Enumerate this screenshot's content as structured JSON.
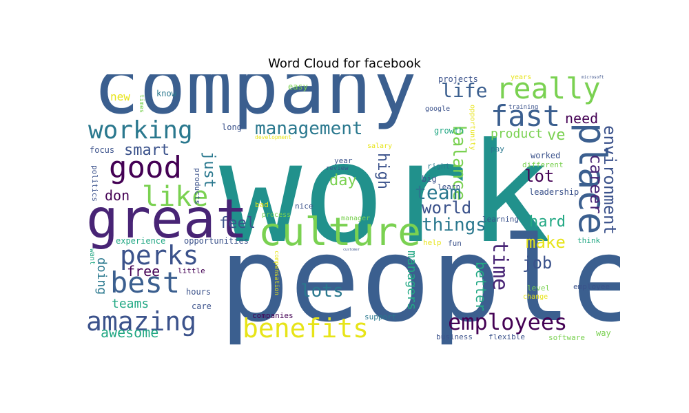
{
  "chart_data": {
    "type": "wordcloud",
    "title": "Word Cloud for facebook",
    "colormap": "viridis",
    "words": [
      {
        "text": "work",
        "size": 200,
        "color": "#21918c"
      },
      {
        "text": "people",
        "size": 170,
        "color": "#3b5f8f"
      },
      {
        "text": "company",
        "size": 112,
        "color": "#3b5f8f"
      },
      {
        "text": "great",
        "size": 78,
        "color": "#482475"
      },
      {
        "text": "culture",
        "size": 56,
        "color": "#7ad151"
      },
      {
        "text": "place",
        "size": 54,
        "color": "#3b5f8f"
      },
      {
        "text": "really",
        "size": 42,
        "color": "#7ad151"
      },
      {
        "text": "fast",
        "size": 42,
        "color": "#3b5f8f"
      },
      {
        "text": "best",
        "size": 42,
        "color": "#3b5f8f"
      },
      {
        "text": "amazing",
        "size": 38,
        "color": "#3b528b"
      },
      {
        "text": "benefits",
        "size": 38,
        "color": "#e7e419"
      },
      {
        "text": "working",
        "size": 36,
        "color": "#2a788e"
      },
      {
        "text": "good",
        "size": 44,
        "color": "#440154"
      },
      {
        "text": "like",
        "size": 40,
        "color": "#7ad151"
      },
      {
        "text": "perks",
        "size": 38,
        "color": "#3b528b"
      },
      {
        "text": "employees",
        "size": 32,
        "color": "#440154"
      },
      {
        "text": "management",
        "size": 26,
        "color": "#2a788e"
      },
      {
        "text": "life",
        "size": 28,
        "color": "#3b5f8f"
      },
      {
        "text": "time",
        "size": 30,
        "color": "#482475"
      },
      {
        "text": "balance",
        "size": 26,
        "color": "#7ad151"
      },
      {
        "text": "environment",
        "size": 24,
        "color": "#3b528b"
      },
      {
        "text": "career",
        "size": 24,
        "color": "#482475"
      },
      {
        "text": "team",
        "size": 28,
        "color": "#2a788e"
      },
      {
        "text": "things",
        "size": 26,
        "color": "#2a788e"
      },
      {
        "text": "lots",
        "size": 26,
        "color": "#2a788e"
      },
      {
        "text": "world",
        "size": 24,
        "color": "#3b528b"
      },
      {
        "text": "make",
        "size": 24,
        "color": "#e7e419"
      },
      {
        "text": "job",
        "size": 24,
        "color": "#3b528b"
      },
      {
        "text": "hard",
        "size": 22,
        "color": "#22a884"
      },
      {
        "text": "lot",
        "size": 24,
        "color": "#440154"
      },
      {
        "text": "smart",
        "size": 22,
        "color": "#3b528b"
      },
      {
        "text": "just",
        "size": 22,
        "color": "#2a788e"
      },
      {
        "text": "high",
        "size": 22,
        "color": "#3b528b"
      },
      {
        "text": "day",
        "size": 22,
        "color": "#7ad151"
      },
      {
        "text": "feel",
        "size": 22,
        "color": "#3b528b"
      },
      {
        "text": "need",
        "size": 20,
        "color": "#440154"
      },
      {
        "text": "ve",
        "size": 22,
        "color": "#7ad151"
      },
      {
        "text": "product",
        "size": 18,
        "color": "#7ad151"
      },
      {
        "text": "don",
        "size": 20,
        "color": "#440154"
      },
      {
        "text": "free",
        "size": 20,
        "color": "#440154"
      },
      {
        "text": "doing",
        "size": 18,
        "color": "#2a788e"
      },
      {
        "text": "teams",
        "size": 18,
        "color": "#22a884"
      },
      {
        "text": "awesome",
        "size": 20,
        "color": "#22a884"
      },
      {
        "text": "managers",
        "size": 18,
        "color": "#22a884"
      },
      {
        "text": "better",
        "size": 20,
        "color": "#22a884"
      },
      {
        "text": "new",
        "size": 16,
        "color": "#e7e419"
      },
      {
        "text": "know",
        "size": 12,
        "color": "#2a788e"
      },
      {
        "text": "easy",
        "size": 12,
        "color": "#7ad151"
      },
      {
        "text": "projects",
        "size": 12,
        "color": "#3b528b"
      },
      {
        "text": "years",
        "size": 10,
        "color": "#e7e419"
      },
      {
        "text": "microsoft",
        "size": 6,
        "color": "#3b528b"
      },
      {
        "text": "training",
        "size": 9,
        "color": "#3b528b"
      },
      {
        "text": "google",
        "size": 10,
        "color": "#3b528b"
      },
      {
        "text": "opportunity",
        "size": 10,
        "color": "#e7e419"
      },
      {
        "text": "times",
        "size": 9,
        "color": "#7ad151"
      },
      {
        "text": "long",
        "size": 12,
        "color": "#3b528b"
      },
      {
        "text": "development",
        "size": 8,
        "color": "#e7e419"
      },
      {
        "text": "growth",
        "size": 12,
        "color": "#22a884"
      },
      {
        "text": "focus",
        "size": 12,
        "color": "#3b528b"
      },
      {
        "text": "year",
        "size": 11,
        "color": "#3b528b"
      },
      {
        "text": "salary",
        "size": 10,
        "color": "#e7e419"
      },
      {
        "text": "pay",
        "size": 11,
        "color": "#2a788e"
      },
      {
        "text": "worked",
        "size": 12,
        "color": "#3b528b"
      },
      {
        "text": "different",
        "size": 11,
        "color": "#7ad151"
      },
      {
        "text": "review",
        "size": 9,
        "color": "#3b528b"
      },
      {
        "text": "right",
        "size": 11,
        "color": "#2a788e"
      },
      {
        "text": "big",
        "size": 12,
        "color": "#3b528b"
      },
      {
        "text": "learn",
        "size": 11,
        "color": "#3b528b"
      },
      {
        "text": "leadership",
        "size": 12,
        "color": "#3b528b"
      },
      {
        "text": "politics",
        "size": 11,
        "color": "#3b528b"
      },
      {
        "text": "products",
        "size": 11,
        "color": "#3b528b"
      },
      {
        "text": "bad",
        "size": 11,
        "color": "#e7e419"
      },
      {
        "text": "nice",
        "size": 11,
        "color": "#3b528b"
      },
      {
        "text": "process",
        "size": 10,
        "color": "#7ad151"
      },
      {
        "text": "manager",
        "size": 10,
        "color": "#7ad151"
      },
      {
        "text": "learning",
        "size": 11,
        "color": "#3b528b"
      },
      {
        "text": "experience",
        "size": 12,
        "color": "#22a884"
      },
      {
        "text": "opportunities",
        "size": 12,
        "color": "#3b528b"
      },
      {
        "text": "customer",
        "size": 5,
        "color": "#3b528b"
      },
      {
        "text": "help",
        "size": 11,
        "color": "#e7e419"
      },
      {
        "text": "fun",
        "size": 11,
        "color": "#3b528b"
      },
      {
        "text": "think",
        "size": 11,
        "color": "#22a884"
      },
      {
        "text": "want",
        "size": 10,
        "color": "#22a884"
      },
      {
        "text": "little",
        "size": 11,
        "color": "#440154"
      },
      {
        "text": "compensation",
        "size": 9,
        "color": "#e7e419"
      },
      {
        "text": "hours",
        "size": 12,
        "color": "#3b528b"
      },
      {
        "text": "care",
        "size": 12,
        "color": "#3b528b"
      },
      {
        "text": "level",
        "size": 11,
        "color": "#7ad151"
      },
      {
        "text": "employee",
        "size": 11,
        "color": "#3b528b"
      },
      {
        "text": "change",
        "size": 10,
        "color": "#e7e419"
      },
      {
        "text": "companies",
        "size": 11,
        "color": "#440154"
      },
      {
        "text": "support",
        "size": 11,
        "color": "#2a788e"
      },
      {
        "text": "way",
        "size": 12,
        "color": "#7ad151"
      },
      {
        "text": "business",
        "size": 11,
        "color": "#3b528b"
      },
      {
        "text": "flexible",
        "size": 11,
        "color": "#3b528b"
      },
      {
        "text": "software",
        "size": 11,
        "color": "#7ad151"
      }
    ]
  }
}
